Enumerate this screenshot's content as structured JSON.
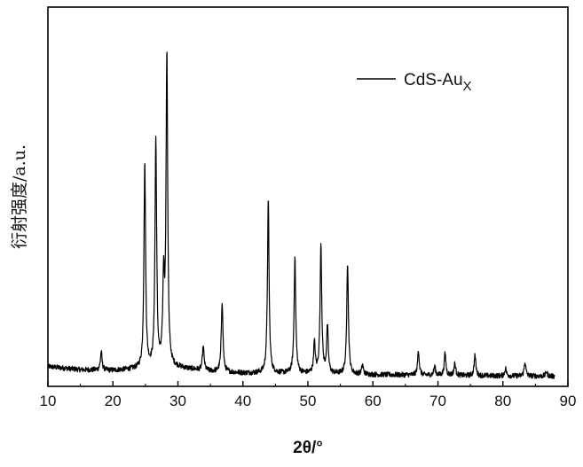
{
  "chart_data": {
    "type": "line",
    "title": "",
    "xlabel": "2θ/°",
    "ylabel": "衍射强度/a.u.",
    "xlim": [
      10,
      90
    ],
    "x_ticks": [
      10,
      20,
      30,
      40,
      50,
      60,
      70,
      80,
      90
    ],
    "ylim": [
      0,
      100
    ],
    "y_ticks_shown": false,
    "grid": false,
    "legend": {
      "position": "top-right",
      "entries": [
        {
          "label": "CdS-Au",
          "subscript": "X"
        }
      ]
    },
    "series": [
      {
        "name": "CdS-AuX",
        "color": "#000000",
        "baseline": {
          "x": [
            10,
            15,
            20,
            24,
            30,
            35,
            40,
            50,
            60,
            70,
            80,
            90
          ],
          "y": [
            5.0,
            4.0,
            3.8,
            4.2,
            4.6,
            3.5,
            3.0,
            2.8,
            2.5,
            2.3,
            2.1,
            2.0
          ]
        },
        "peaks": [
          {
            "x": 18.2,
            "y": 9.5
          },
          {
            "x": 24.9,
            "y": 67.0
          },
          {
            "x": 26.6,
            "y": 74.0
          },
          {
            "x": 27.8,
            "y": 30.0
          },
          {
            "x": 28.3,
            "y": 100.0
          },
          {
            "x": 33.9,
            "y": 11.0
          },
          {
            "x": 36.8,
            "y": 25.0
          },
          {
            "x": 43.9,
            "y": 56.0
          },
          {
            "x": 48.0,
            "y": 39.0
          },
          {
            "x": 51.0,
            "y": 12.0
          },
          {
            "x": 52.0,
            "y": 43.0
          },
          {
            "x": 53.0,
            "y": 17.0
          },
          {
            "x": 56.1,
            "y": 37.0
          },
          {
            "x": 58.4,
            "y": 5.5
          },
          {
            "x": 67.0,
            "y": 10.0
          },
          {
            "x": 69.5,
            "y": 5.0
          },
          {
            "x": 71.1,
            "y": 9.0
          },
          {
            "x": 72.6,
            "y": 6.0
          },
          {
            "x": 75.7,
            "y": 8.5
          },
          {
            "x": 80.4,
            "y": 4.5
          },
          {
            "x": 83.4,
            "y": 6.5
          },
          {
            "x": 86.7,
            "y": 3.5
          }
        ]
      }
    ]
  }
}
